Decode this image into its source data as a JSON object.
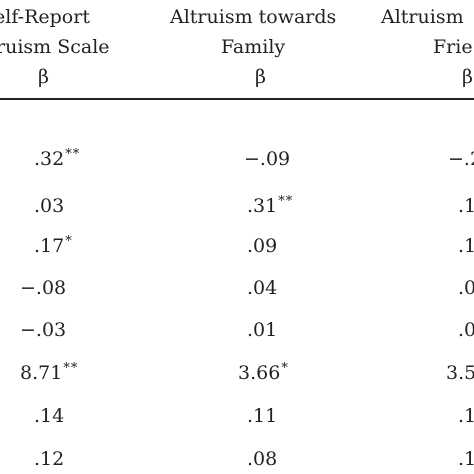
{
  "headers": [
    {
      "line1": "elf-Report",
      "line2": "ruism Scale",
      "beta": "β"
    },
    {
      "line1": "Altruism towards",
      "line2": "Family",
      "beta": "β"
    },
    {
      "line1": "Altruism",
      "line2": "Frie",
      "beta": "β"
    }
  ],
  "rows": [
    [
      {
        "v": ".32",
        "s": "**"
      },
      {
        "v": "−.09",
        "s": ""
      },
      {
        "v": "−.2",
        "s": ""
      }
    ],
    [
      {
        "v": ".03",
        "s": ""
      },
      {
        "v": ".31",
        "s": "**"
      },
      {
        "v": ".1",
        "s": ""
      }
    ],
    [
      {
        "v": ".17",
        "s": "*"
      },
      {
        "v": ".09",
        "s": ""
      },
      {
        "v": ".1",
        "s": ""
      }
    ],
    [
      {
        "v": "−.08",
        "s": ""
      },
      {
        "v": ".04",
        "s": ""
      },
      {
        "v": ".0",
        "s": ""
      }
    ],
    [
      {
        "v": "−.03",
        "s": ""
      },
      {
        "v": ".01",
        "s": ""
      },
      {
        "v": ".0",
        "s": ""
      }
    ],
    [
      {
        "v": "8.71",
        "s": "**"
      },
      {
        "v": "3.66",
        "s": "*"
      },
      {
        "v": "3.5",
        "s": ""
      }
    ],
    [
      {
        "v": ".14",
        "s": ""
      },
      {
        "v": ".11",
        "s": ""
      },
      {
        "v": ".1",
        "s": ""
      }
    ],
    [
      {
        "v": ".12",
        "s": ""
      },
      {
        "v": ".08",
        "s": ""
      },
      {
        "v": ".1",
        "s": ""
      }
    ]
  ]
}
